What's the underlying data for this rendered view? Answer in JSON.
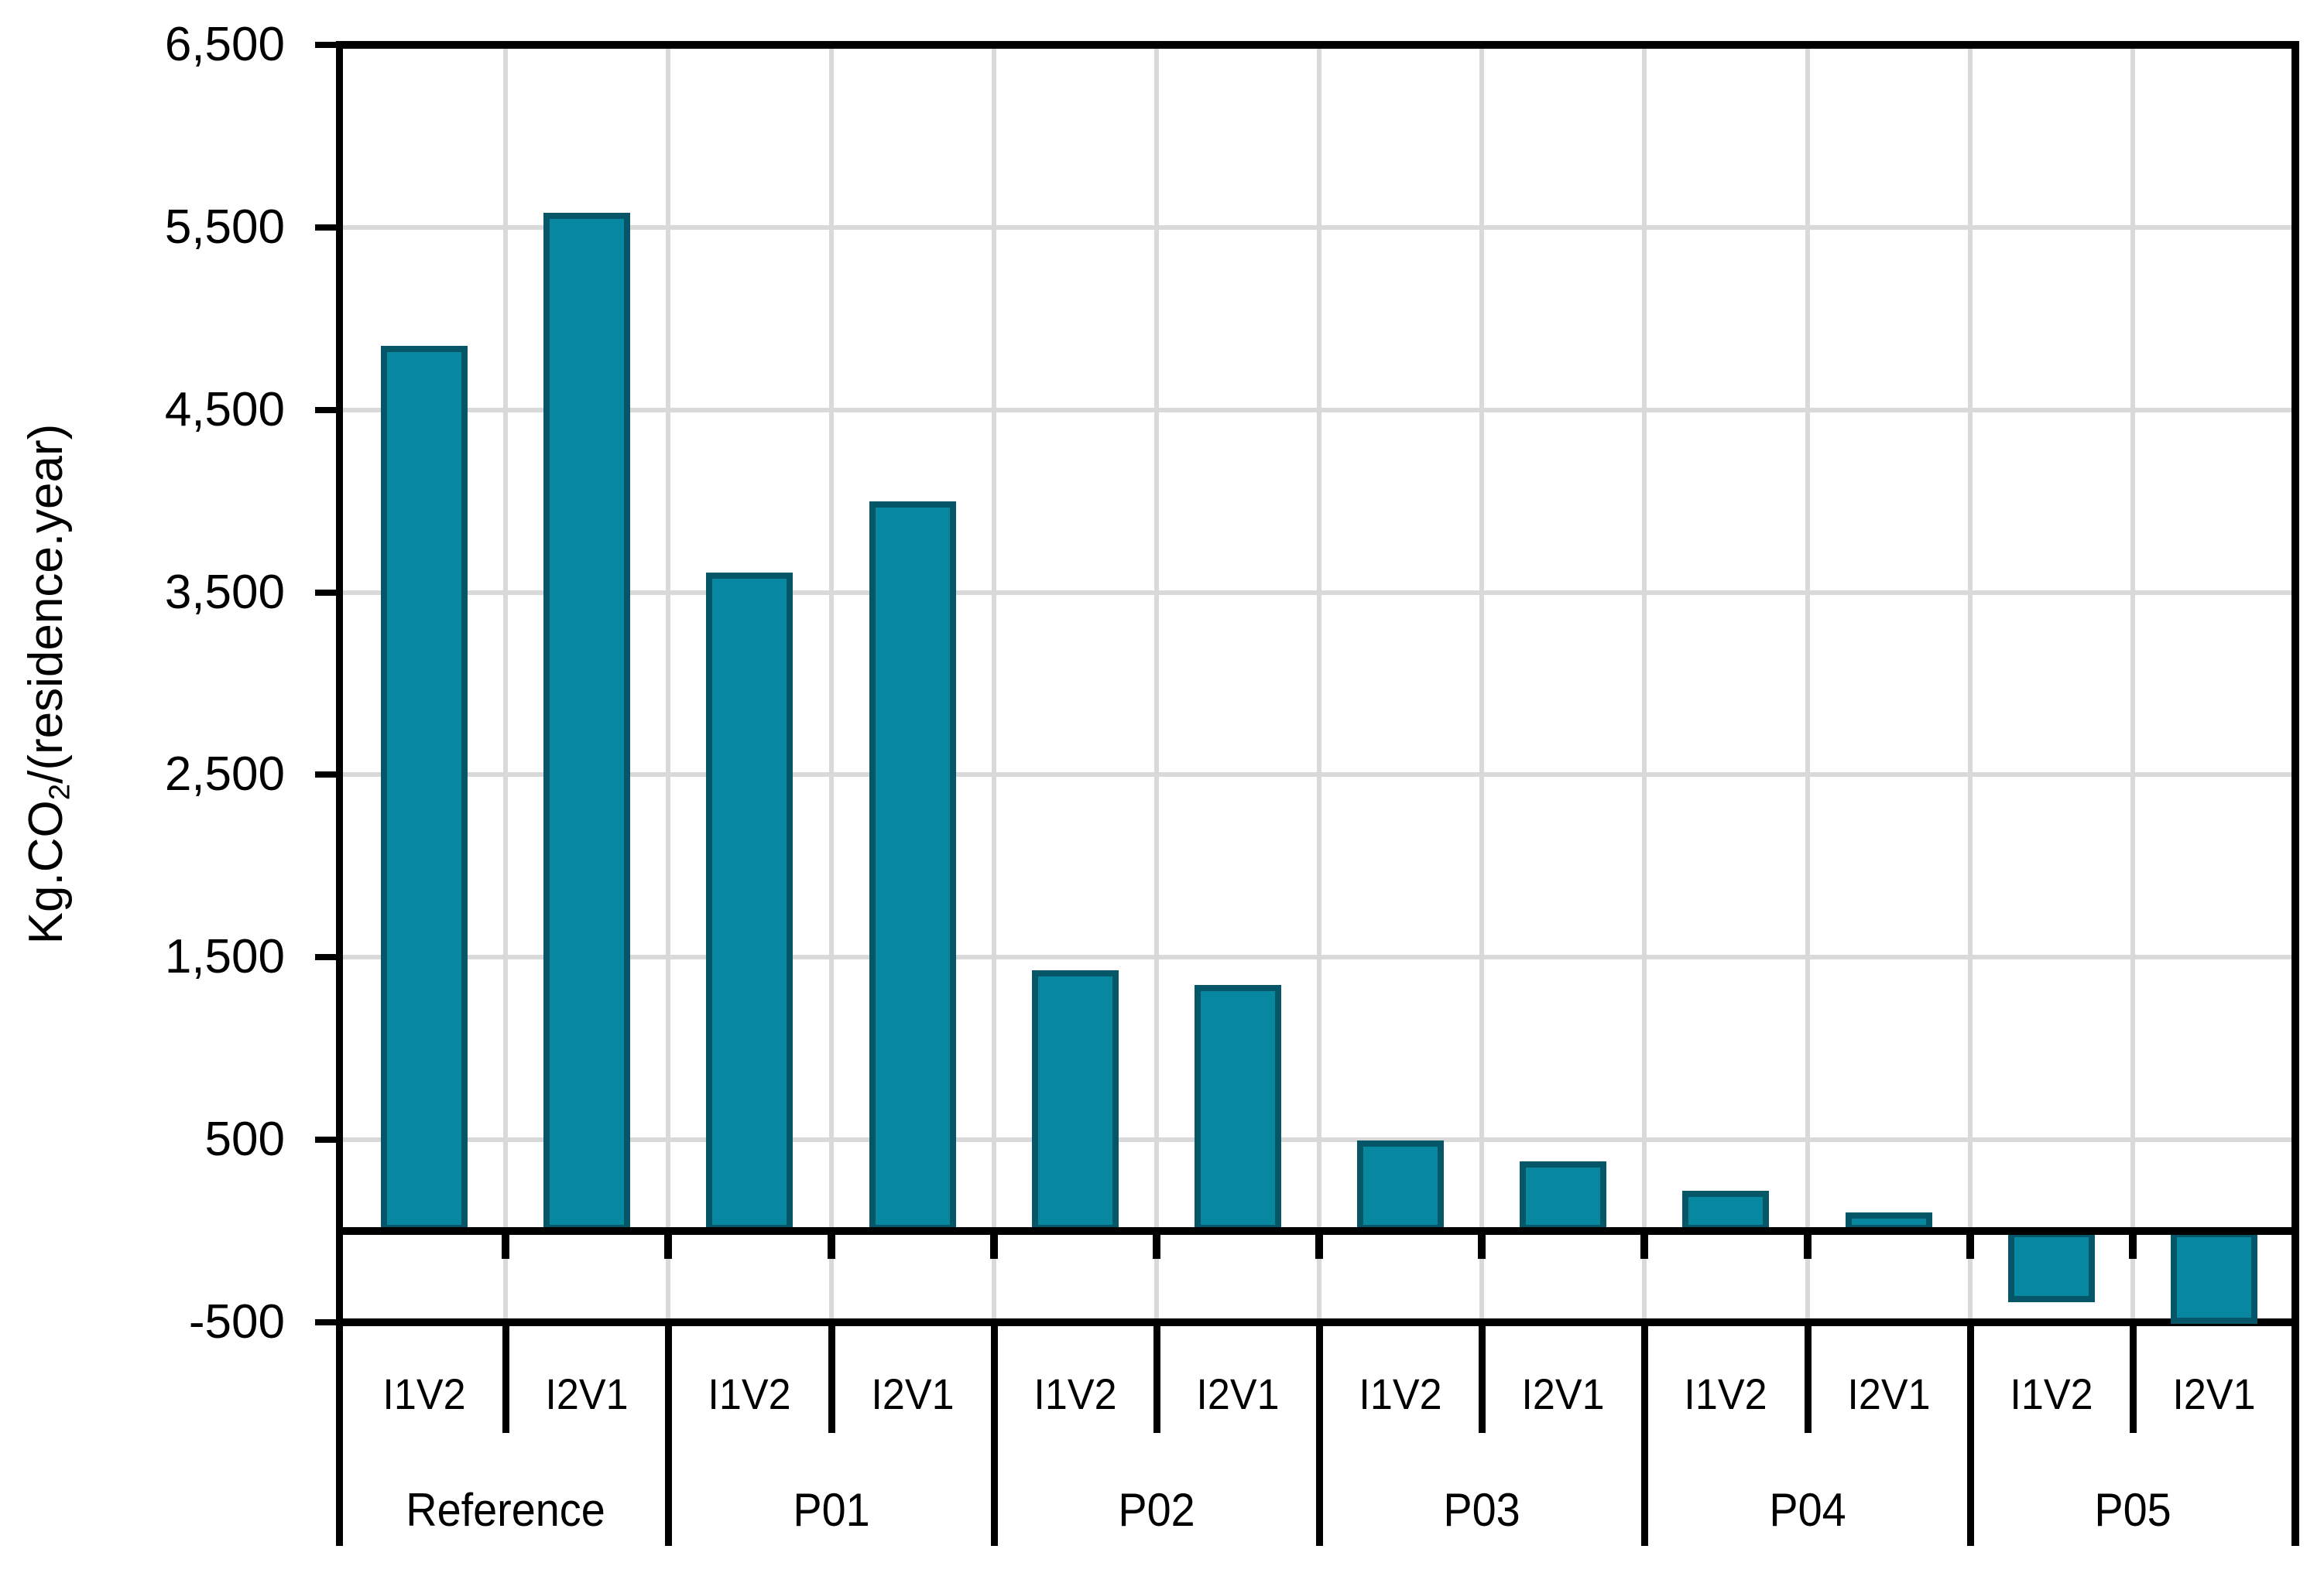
{
  "chart_data": {
    "type": "bar",
    "title": "",
    "ylabel": {
      "prefix": "Kg.CO",
      "sub": "2",
      "suffix": "/(residence.year)"
    },
    "xlabel": "",
    "categories": [
      "Reference",
      "P01",
      "P02",
      "P03",
      "P04",
      "P05"
    ],
    "sub_categories": [
      "I1V2",
      "I2V1"
    ],
    "groups": [
      {
        "label": "Reference",
        "bars": [
          {
            "label": "I1V2",
            "value": 4850
          },
          {
            "label": "I2V1",
            "value": 5580
          }
        ]
      },
      {
        "label": "P01",
        "bars": [
          {
            "label": "I1V2",
            "value": 3610
          },
          {
            "label": "I2V1",
            "value": 4000
          }
        ]
      },
      {
        "label": "P02",
        "bars": [
          {
            "label": "I1V2",
            "value": 1430
          },
          {
            "label": "I2V1",
            "value": 1350
          }
        ]
      },
      {
        "label": "P03",
        "bars": [
          {
            "label": "I1V2",
            "value": 495
          },
          {
            "label": "I2V1",
            "value": 380
          }
        ]
      },
      {
        "label": "P04",
        "bars": [
          {
            "label": "I1V2",
            "value": 220
          },
          {
            "label": "I2V1",
            "value": 100
          }
        ]
      },
      {
        "label": "P05",
        "bars": [
          {
            "label": "I1V2",
            "value": -390
          },
          {
            "label": "I2V1",
            "value": -510
          }
        ]
      }
    ],
    "y_axis": {
      "min": -500,
      "max": 6500,
      "tick_step": 1000,
      "tick_labels": [
        "6,500",
        "5,500",
        "4,500",
        "3,500",
        "2,500",
        "1,500",
        "500",
        "-500"
      ]
    },
    "grid": true,
    "legend": false,
    "layout_hints": {
      "gridlines": "light gray horizontal every 1000 and vertical at every category cell boundary",
      "zero_baseline": "thick black",
      "axis_frame": "black top and right border"
    },
    "colors": {
      "bar_fill": "#0887A0",
      "bar_stroke": "#055666",
      "gridline": "#D9D9D9",
      "axis": "#000000",
      "background": "#FFFFFF"
    }
  }
}
